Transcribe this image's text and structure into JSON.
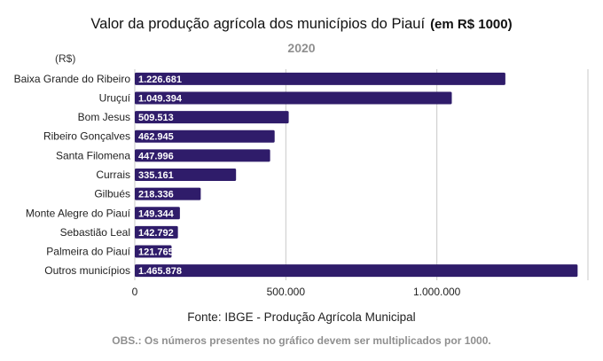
{
  "chart_data": {
    "type": "bar",
    "orientation": "horizontal",
    "title": "Valor da produção agrícola dos municípios do Piauí",
    "title_unit": "(em R$ 1000)",
    "subtitle": "2020",
    "unit_label": "(R$)",
    "categories": [
      "Baixa Grande do Ribeiro",
      "Uruçuí",
      "Bom Jesus",
      "Ribeiro Gonçalves",
      "Santa Filomena",
      "Currais",
      "Gilbués",
      "Monte Alegre do Piauí",
      "Sebastião Leal",
      "Palmeira do Piauí",
      "Outros municípios"
    ],
    "values": [
      1226681,
      1049394,
      509513,
      462945,
      447996,
      335161,
      218336,
      149344,
      142792,
      121765,
      1465878
    ],
    "value_labels": [
      "1.226.681",
      "1.049.394",
      "509.513",
      "462.945",
      "447.996",
      "335.161",
      "218.336",
      "149.344",
      "142.792",
      "121.765",
      "1.465.878"
    ],
    "xlim": [
      0,
      1500000
    ],
    "xticks": [
      0,
      500000,
      1000000
    ],
    "xtick_labels": [
      "0",
      "500.000",
      "1.000.000"
    ],
    "grid": "vertical",
    "bar_color": "#2f1c6a",
    "grid_color": "#c8c8c8"
  },
  "footer": {
    "source": "Fonte: IBGE - Produção Agrícola Municipal",
    "obs": "OBS.: Os números presentes no gráfico devem ser multiplicados por 1000."
  }
}
